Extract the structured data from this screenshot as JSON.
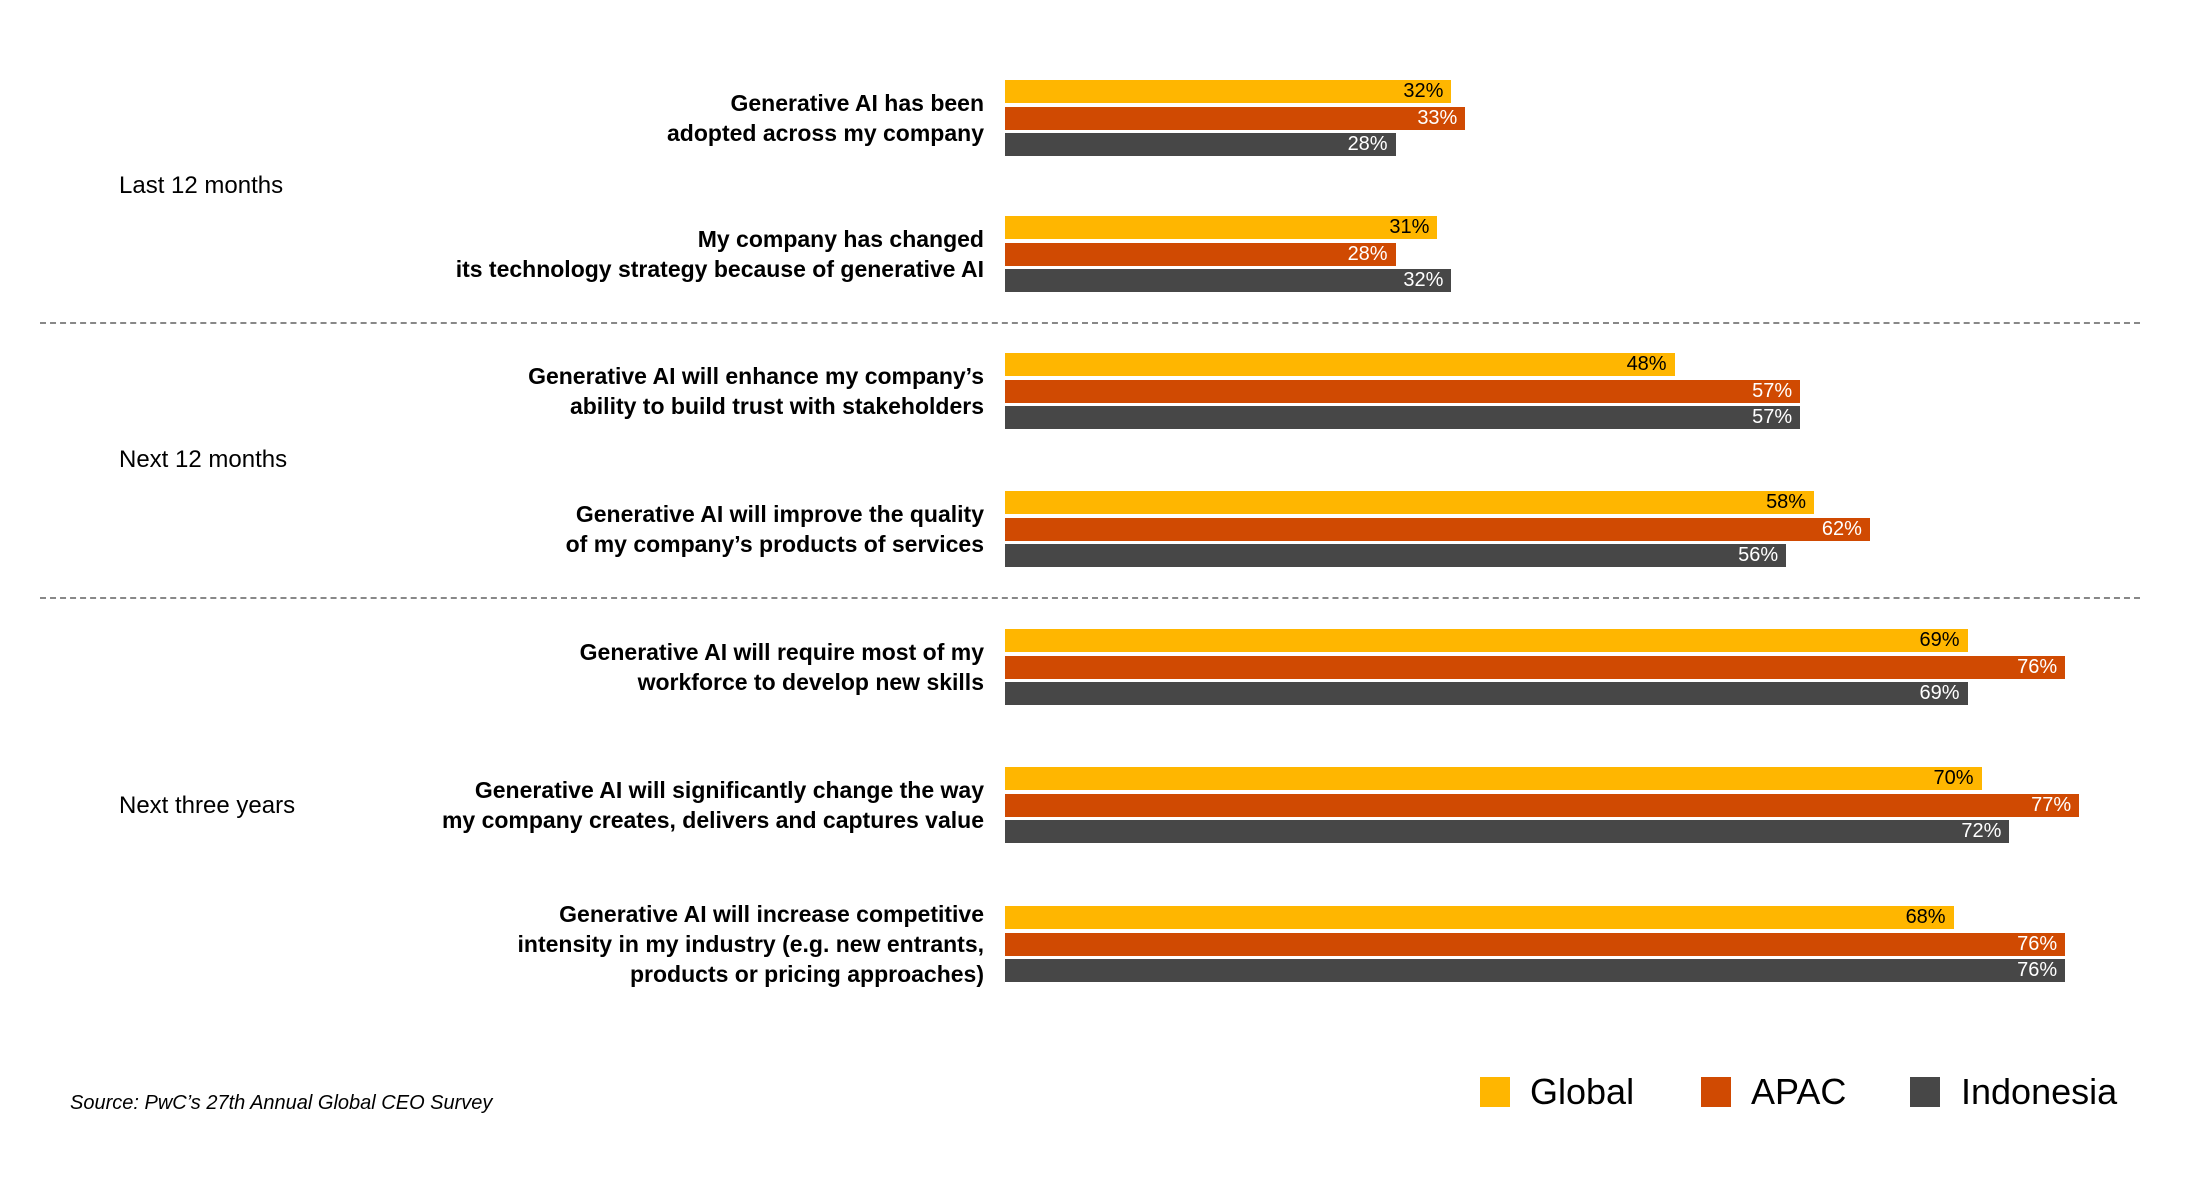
{
  "chart_data": {
    "type": "bar",
    "orientation": "horizontal",
    "groups": [
      {
        "name": "Last 12 months",
        "categories": [
          0,
          1
        ]
      },
      {
        "name": "Next 12 months",
        "categories": [
          2,
          3
        ]
      },
      {
        "name": "Next three years",
        "categories": [
          4,
          5,
          6
        ]
      }
    ],
    "categories": [
      "Generative AI has been\nadopted across my company",
      "My company has changed\nits technology strategy because of generative AI",
      "Generative AI will enhance my company’s\nability to build trust with stakeholders",
      "Generative AI will improve the quality\nof my company’s products of services",
      "Generative AI will require most of my\nworkforce to develop new skills",
      "Generative AI will significantly change the way\nmy company creates, delivers and captures value",
      "Generative AI will increase competitive\nintensity in my industry (e.g. new entrants,\nproducts or pricing approaches)"
    ],
    "series": [
      {
        "name": "Global",
        "color": "#FFB600",
        "label_color": "#000000",
        "values": [
          32,
          31,
          48,
          58,
          69,
          70,
          68
        ]
      },
      {
        "name": "APAC",
        "color": "#D04A02",
        "label_color": "#FFFFFF",
        "values": [
          33,
          28,
          57,
          62,
          76,
          77,
          76
        ]
      },
      {
        "name": "Indonesia",
        "color": "#474747",
        "label_color": "#FFFFFF",
        "values": [
          28,
          32,
          57,
          56,
          69,
          72,
          76
        ]
      }
    ],
    "value_suffix": "%",
    "legend_position": "bottom-right",
    "grid": false
  },
  "source": "Source: PwC’s 27th Annual Global CEO Survey"
}
